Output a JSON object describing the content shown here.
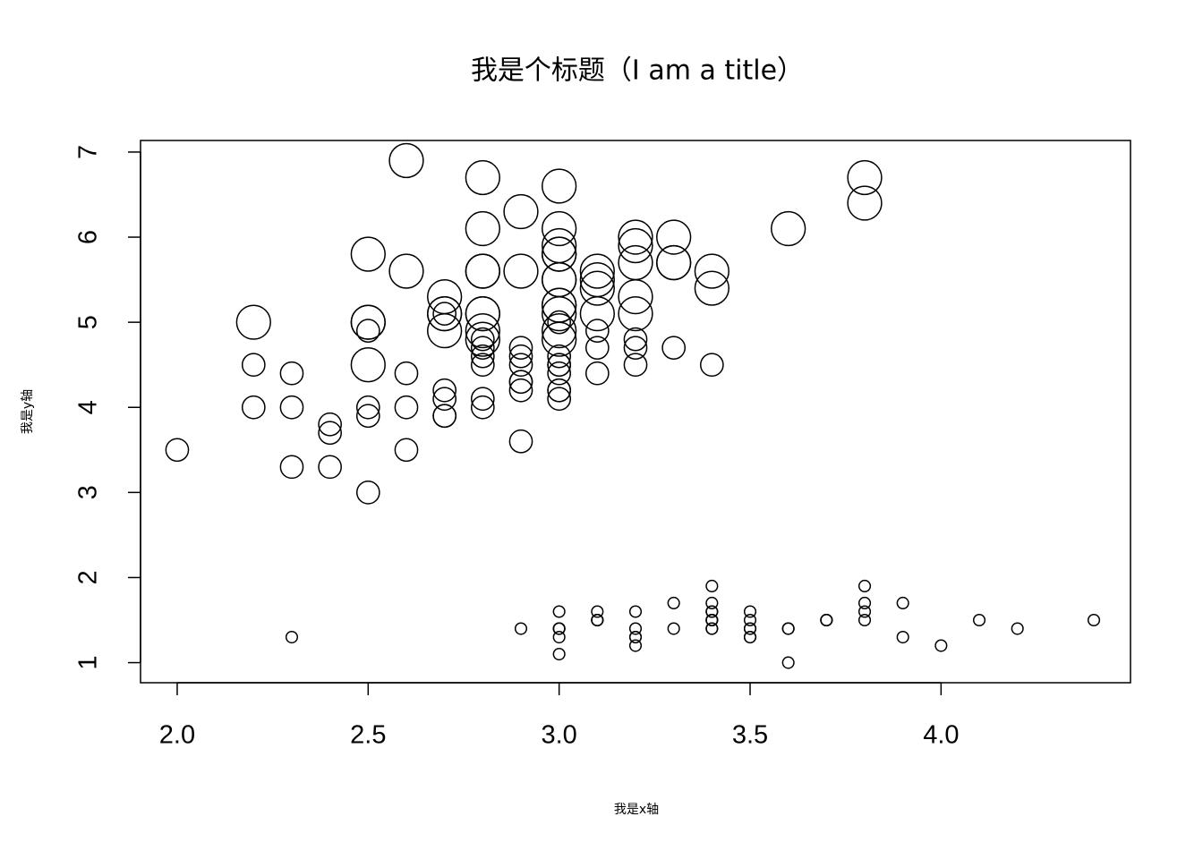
{
  "chart_data": {
    "type": "scatter",
    "title": "我是个标题（I am a title）",
    "x_label": "我是x轴",
    "y_label": "我是y轴",
    "x": [
      3.5,
      3.0,
      3.2,
      3.1,
      3.6,
      3.9,
      3.4,
      3.4,
      2.9,
      3.1,
      3.7,
      3.4,
      3.0,
      3.0,
      4.0,
      4.4,
      3.9,
      3.5,
      3.8,
      3.8,
      3.4,
      3.7,
      3.6,
      3.3,
      3.4,
      3.0,
      3.4,
      3.5,
      3.4,
      3.2,
      3.1,
      3.4,
      4.1,
      4.2,
      3.1,
      3.2,
      3.5,
      3.6,
      3.0,
      3.4,
      3.5,
      2.3,
      3.2,
      3.5,
      3.8,
      3.0,
      3.8,
      3.2,
      3.7,
      3.3,
      3.2,
      3.2,
      3.1,
      2.3,
      2.8,
      2.8,
      3.3,
      2.4,
      2.9,
      2.7,
      2.0,
      3.0,
      2.2,
      2.9,
      2.9,
      3.1,
      3.0,
      2.7,
      2.2,
      2.5,
      3.2,
      2.8,
      2.5,
      2.8,
      2.9,
      3.0,
      2.8,
      3.0,
      2.9,
      2.6,
      2.4,
      2.4,
      2.7,
      2.7,
      3.0,
      3.4,
      3.1,
      2.3,
      3.0,
      2.5,
      2.6,
      3.0,
      2.6,
      2.3,
      2.7,
      3.0,
      2.9,
      2.9,
      2.5,
      2.8,
      3.3,
      2.7,
      3.0,
      2.9,
      3.0,
      3.0,
      2.5,
      2.9,
      2.5,
      3.6,
      3.2,
      2.7,
      3.0,
      2.5,
      2.8,
      3.2,
      3.0,
      3.8,
      2.6,
      2.2,
      3.2,
      2.8,
      2.8,
      2.7,
      3.3,
      3.2,
      2.8,
      3.0,
      2.8,
      3.0,
      2.8,
      3.8,
      2.8,
      2.8,
      2.6,
      3.0,
      3.4,
      3.1,
      3.0,
      3.1,
      3.1,
      3.1,
      2.7,
      3.2,
      3.3,
      3.0,
      2.5,
      3.0,
      3.4,
      3.0
    ],
    "y": [
      1.4,
      1.4,
      1.3,
      1.5,
      1.4,
      1.7,
      1.4,
      1.5,
      1.4,
      1.5,
      1.5,
      1.6,
      1.4,
      1.1,
      1.2,
      1.5,
      1.3,
      1.4,
      1.7,
      1.5,
      1.7,
      1.5,
      1.0,
      1.7,
      1.9,
      1.6,
      1.6,
      1.5,
      1.4,
      1.6,
      1.6,
      1.5,
      1.5,
      1.4,
      1.5,
      1.2,
      1.3,
      1.4,
      1.3,
      1.5,
      1.3,
      1.3,
      1.3,
      1.6,
      1.9,
      1.4,
      1.6,
      1.4,
      1.5,
      1.4,
      4.7,
      4.5,
      4.9,
      4.0,
      4.6,
      4.5,
      4.7,
      3.3,
      4.6,
      3.9,
      3.5,
      4.2,
      4.0,
      4.7,
      3.6,
      4.4,
      4.5,
      4.1,
      4.5,
      3.9,
      4.8,
      4.0,
      4.9,
      4.7,
      4.3,
      4.4,
      4.8,
      5.0,
      4.5,
      3.5,
      3.8,
      3.7,
      3.9,
      5.1,
      4.5,
      4.5,
      4.7,
      4.4,
      4.1,
      4.0,
      4.4,
      4.6,
      4.0,
      3.3,
      4.2,
      4.2,
      4.2,
      4.3,
      3.0,
      4.1,
      6.0,
      5.1,
      5.9,
      5.6,
      5.8,
      6.6,
      4.5,
      6.3,
      5.8,
      6.1,
      5.1,
      5.3,
      5.5,
      5.0,
      5.1,
      5.3,
      5.5,
      6.7,
      6.9,
      5.0,
      5.7,
      4.9,
      6.7,
      4.9,
      5.7,
      6.0,
      4.8,
      4.9,
      5.6,
      5.8,
      6.1,
      6.4,
      5.6,
      5.1,
      5.6,
      6.1,
      5.6,
      5.5,
      4.8,
      5.4,
      5.6,
      5.1,
      5.1,
      5.9,
      5.7,
      5.2,
      5.0,
      5.2,
      5.4,
      5.1
    ],
    "sizes": [
      1,
      1,
      1,
      1,
      1,
      1,
      1,
      1,
      1,
      1,
      1,
      1,
      1,
      1,
      1,
      1,
      1,
      1,
      1,
      1,
      1,
      1,
      1,
      1,
      1,
      1,
      1,
      1,
      1,
      1,
      1,
      1,
      1,
      1,
      1,
      1,
      1,
      1,
      1,
      1,
      1,
      1,
      1,
      1,
      1,
      1,
      1,
      1,
      1,
      1,
      2,
      2,
      2,
      2,
      2,
      2,
      2,
      2,
      2,
      2,
      2,
      2,
      2,
      2,
      2,
      2,
      2,
      2,
      2,
      2,
      2,
      2,
      2,
      2,
      2,
      2,
      2,
      2,
      2,
      2,
      2,
      2,
      2,
      2,
      2,
      2,
      2,
      2,
      2,
      2,
      2,
      2,
      2,
      2,
      2,
      2,
      2,
      2,
      2,
      2,
      3,
      3,
      3,
      3,
      3,
      3,
      3,
      3,
      3,
      3,
      3,
      3,
      3,
      3,
      3,
      3,
      3,
      3,
      3,
      3,
      3,
      3,
      3,
      3,
      3,
      3,
      3,
      3,
      3,
      3,
      3,
      3,
      3,
      3,
      3,
      3,
      3,
      3,
      3,
      3,
      3,
      3,
      3,
      3,
      3,
      3,
      3,
      3,
      3,
      3
    ],
    "color": "#000000",
    "xlim": [
      1.904,
      4.496
    ],
    "ylim": [
      0.764,
      7.136
    ],
    "xticks": [
      {
        "value": 2,
        "label": "2.0"
      },
      {
        "value": 2.5,
        "label": "2.5"
      },
      {
        "value": 3,
        "label": "3.0"
      },
      {
        "value": 3.5,
        "label": "3.5"
      },
      {
        "value": 4,
        "label": "4.0"
      }
    ],
    "yticks": [
      1,
      2,
      3,
      4,
      5,
      6,
      7
    ]
  }
}
